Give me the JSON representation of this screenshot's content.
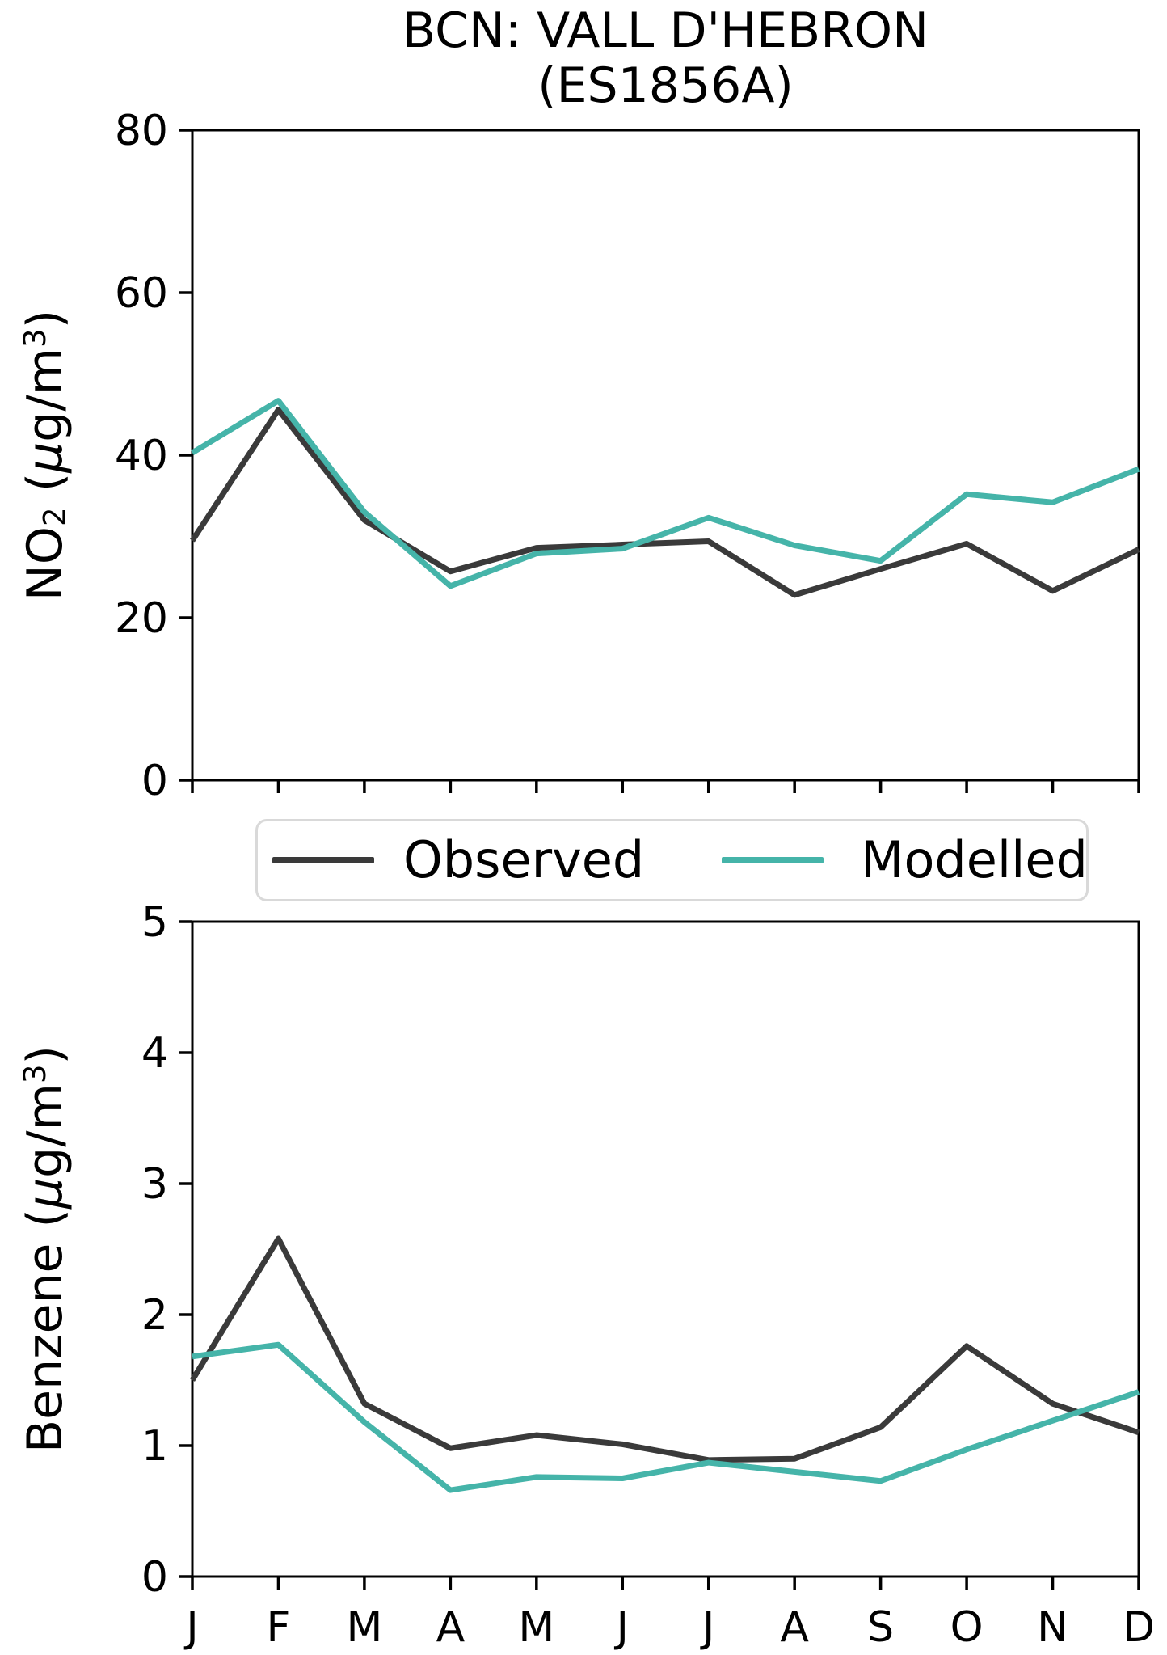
{
  "title": {
    "line1": "BCN: VALL D'HEBRON",
    "line2": "(ES1856A)"
  },
  "colors": {
    "observed": "#3a3a3a",
    "modelled": "#45b4a9",
    "axis": "#000000",
    "legend_border": "#d9d9d9",
    "background": "#ffffff"
  },
  "legend": {
    "items": [
      {
        "label": "Observed"
      },
      {
        "label": "Modelled"
      }
    ],
    "position": "between-charts"
  },
  "months": [
    "J",
    "F",
    "M",
    "A",
    "M",
    "J",
    "J",
    "A",
    "S",
    "O",
    "N",
    "D"
  ],
  "chart_data": [
    {
      "id": "no2",
      "type": "line",
      "title": "BCN: VALL D'HEBRON (ES1856A)",
      "xlabel": "",
      "ylabel": "NO2 (ug/m3)",
      "ylabel_parts": {
        "pre": "NO",
        "sub": "2",
        "open": " (",
        "mu": "μ",
        "unit": "g/m",
        "sup": "3",
        "close": ")"
      },
      "ylim": [
        0,
        80
      ],
      "yticks": [
        0,
        20,
        40,
        60,
        80
      ],
      "grid": false,
      "show_x_tick_labels": false,
      "categories": [
        "J",
        "F",
        "M",
        "A",
        "M",
        "J",
        "J",
        "A",
        "S",
        "O",
        "N",
        "D"
      ],
      "series": [
        {
          "name": "Observed",
          "color": "#3a3a3a",
          "values": [
            29.5,
            45.6,
            32.0,
            25.7,
            28.6,
            29.0,
            29.4,
            22.8,
            26.0,
            29.1,
            23.3,
            28.4
          ]
        },
        {
          "name": "Modelled",
          "color": "#45b4a9",
          "values": [
            40.3,
            46.7,
            33.0,
            23.9,
            27.9,
            28.5,
            32.3,
            28.9,
            27.0,
            35.2,
            34.2,
            38.3
          ]
        }
      ]
    },
    {
      "id": "benzene",
      "type": "line",
      "title": "",
      "xlabel": "",
      "ylabel": "Benzene (ug/m3)",
      "ylabel_parts": {
        "pre": "Benzene",
        "sub": "",
        "open": " (",
        "mu": "μ",
        "unit": "g/m",
        "sup": "3",
        "close": ")"
      },
      "ylim": [
        0,
        5
      ],
      "yticks": [
        0,
        1,
        2,
        3,
        4,
        5
      ],
      "grid": false,
      "show_x_tick_labels": true,
      "categories": [
        "J",
        "F",
        "M",
        "A",
        "M",
        "J",
        "J",
        "A",
        "S",
        "O",
        "N",
        "D"
      ],
      "series": [
        {
          "name": "Observed",
          "color": "#3a3a3a",
          "values": [
            1.5,
            2.58,
            1.32,
            0.98,
            1.08,
            1.01,
            0.89,
            0.9,
            1.14,
            1.76,
            1.32,
            1.1
          ]
        },
        {
          "name": "Modelled",
          "color": "#45b4a9",
          "values": [
            1.68,
            1.77,
            1.18,
            0.66,
            0.76,
            0.75,
            0.87,
            0.8,
            0.73,
            0.97,
            1.19,
            1.41
          ]
        }
      ]
    }
  ]
}
